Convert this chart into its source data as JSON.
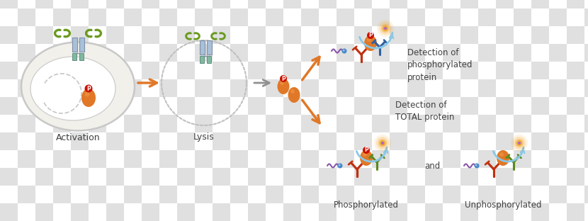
{
  "checker_colors": [
    "#e0e0e0",
    "#ffffff"
  ],
  "checker_size": 25,
  "labels": {
    "activation": "Activation",
    "lysis": "Lysis",
    "detection_phospho": "Detection of\nphosphorylated\nprotein",
    "detection_total": "Detection of\nTOTAL protein",
    "phosphorylated": "Phosphorylated",
    "unphosphorylated": "Unphosphorylated",
    "and": "and"
  },
  "colors": {
    "orange": "#E07828",
    "orange_light": "#F09848",
    "red_ab": "#C03010",
    "green_ab": "#5A8A20",
    "blue_ab": "#3060A0",
    "blue_light": "#88C8E8",
    "purple": "#8855AA",
    "blue_bead": "#4488CC",
    "gray_cell": "#C8C8C8",
    "cell_fill": "#F2F0EA",
    "cell_inner": "#FFFFFF",
    "receptor_blue": "#8AAAC8",
    "receptor_teal": "#80B8A0",
    "arrow_orange": "#E07828",
    "arrow_gray": "#909090",
    "text_dark": "#404040",
    "p_red": "#CC1100",
    "glow_orange": "#F0A020",
    "glow_purple": "#AA66CC",
    "green_ligand": "#6A9A20"
  },
  "figsize": [
    8.3,
    3.12
  ],
  "dpi": 100,
  "fig_w": 830,
  "fig_h": 312
}
